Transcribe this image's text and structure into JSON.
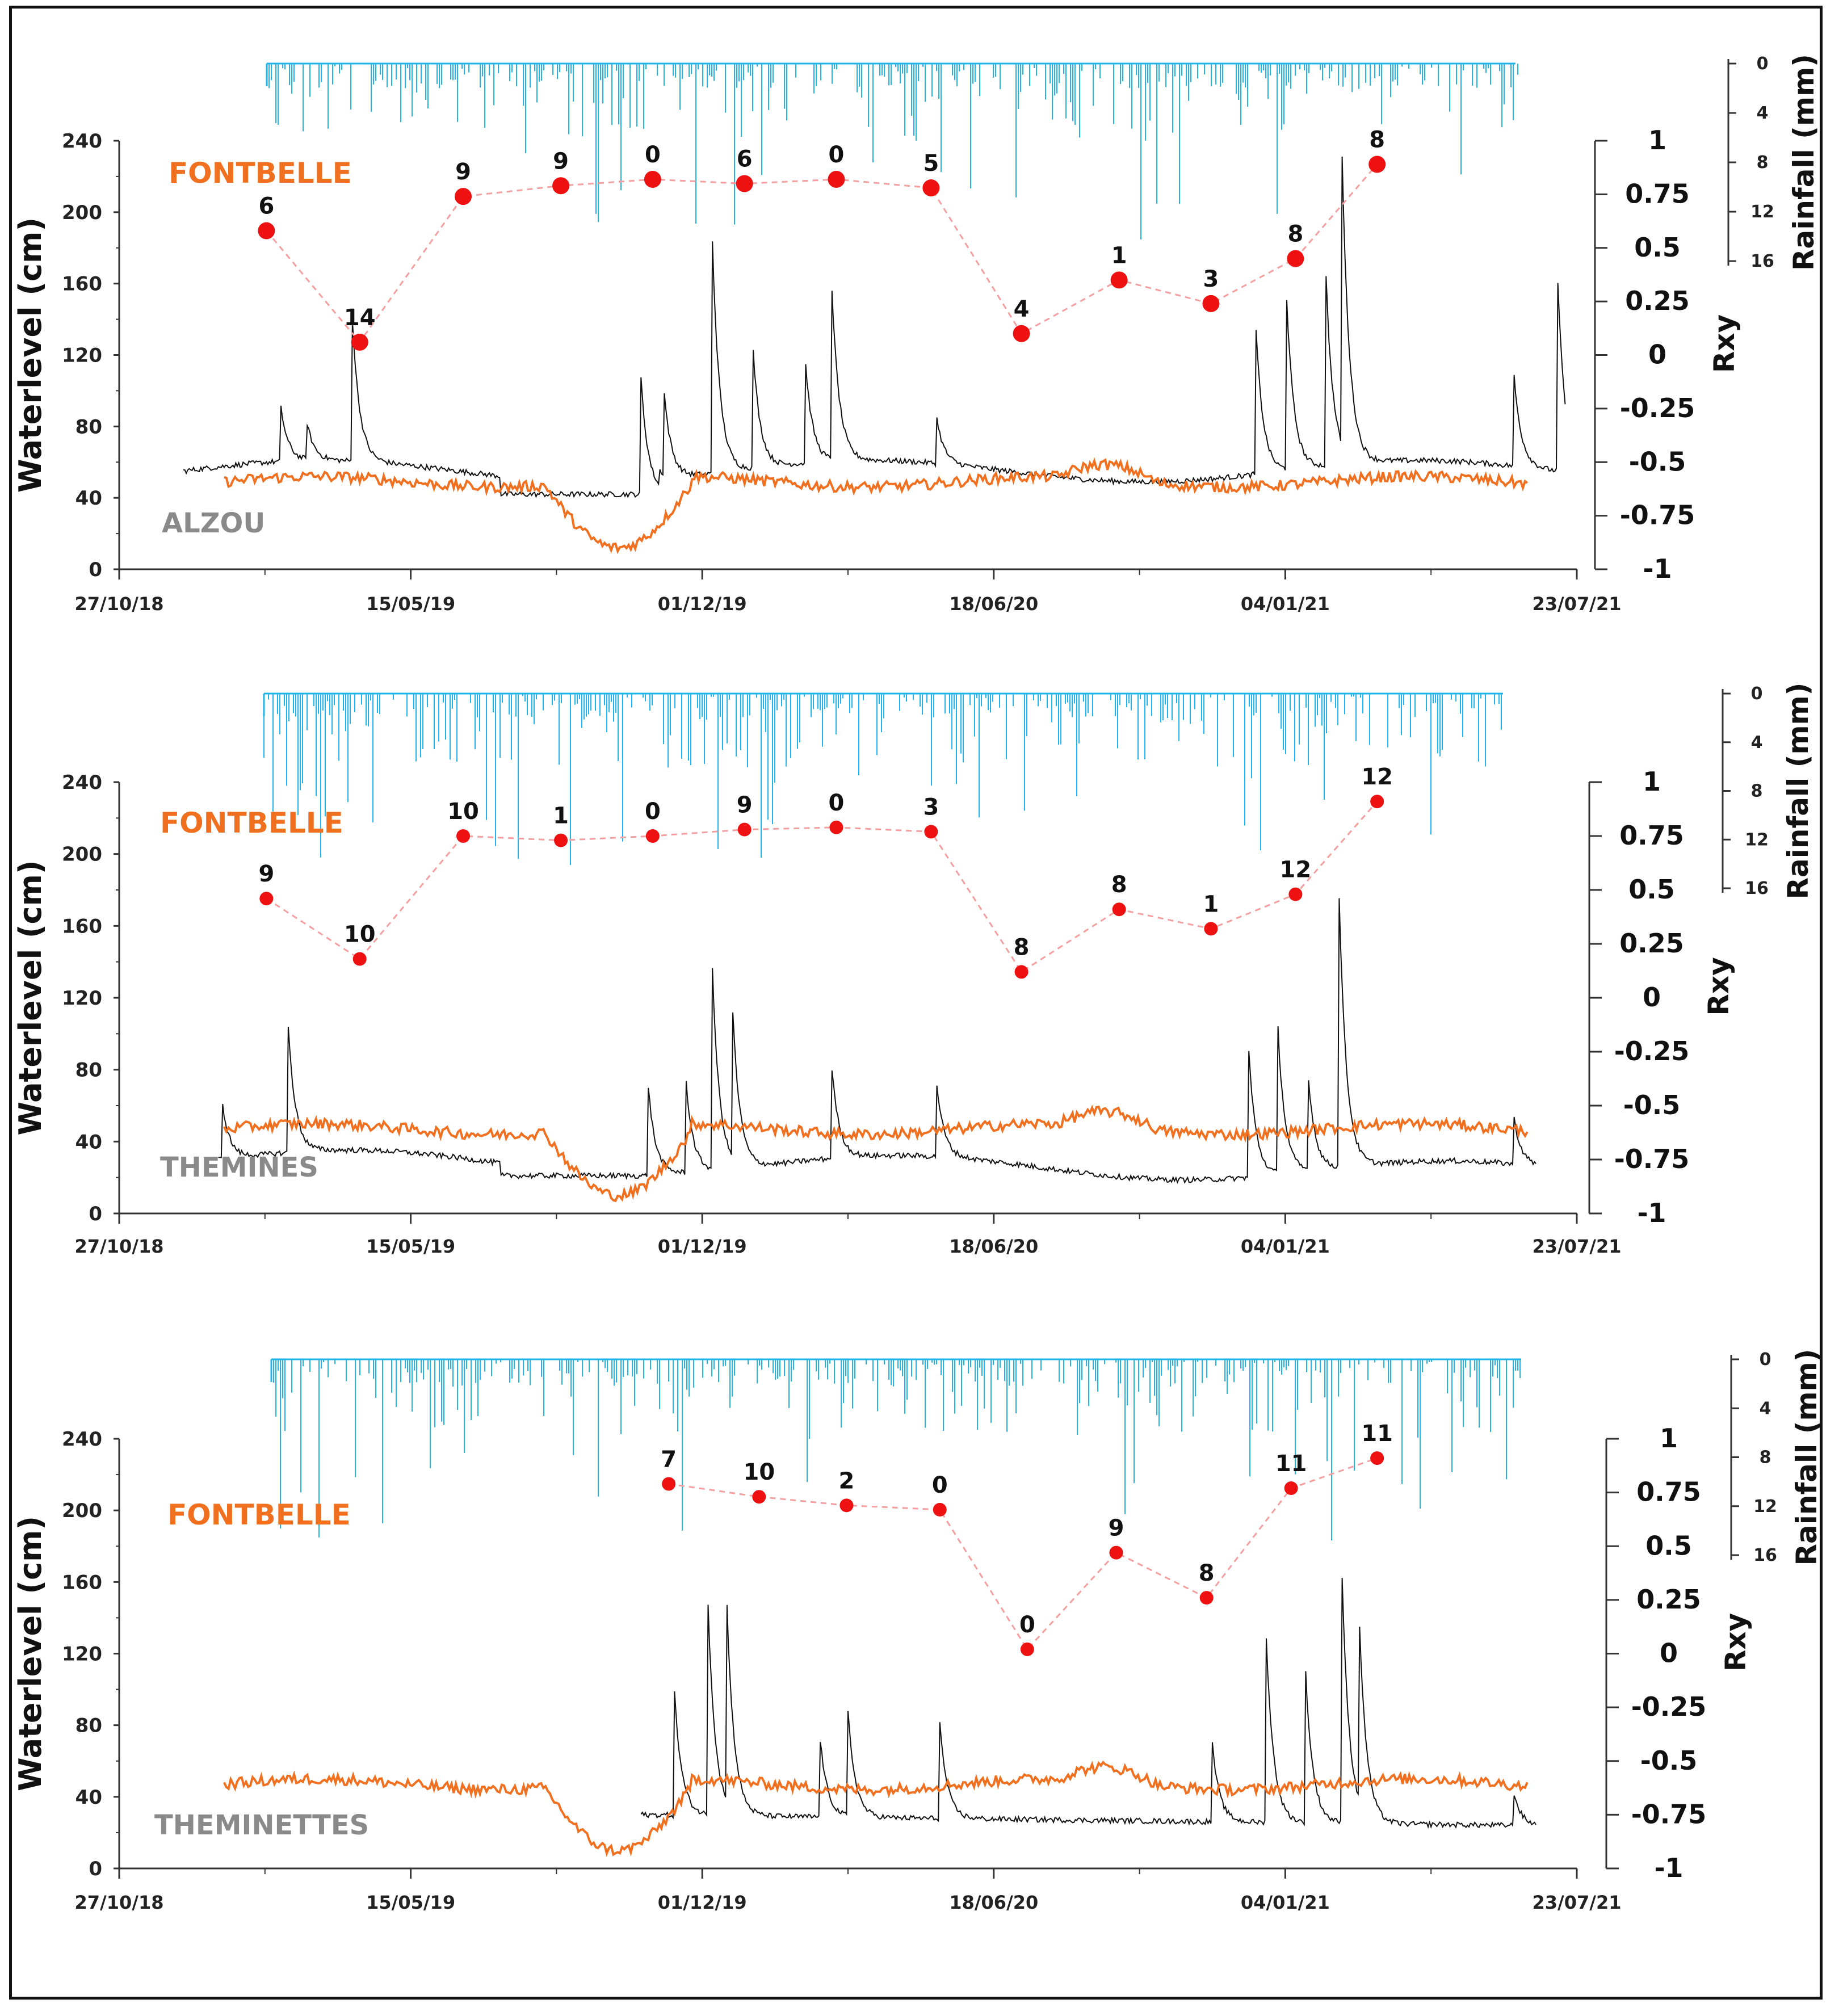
{
  "colors": {
    "rainfall": "#1fb4ea",
    "fontbelle_line": "#f07020",
    "site_line": "#111111",
    "rxy_point": "#ee1111",
    "rxy_dash": "#f4a0a0",
    "fontbelle_label": "#f07020",
    "site_label": "#8a8a8a",
    "axis": "#333333"
  },
  "chart_data": [
    {
      "type": "line",
      "panel": "top",
      "reference_label": "FONTBELLE",
      "site_label": "ALZOU",
      "ylabel_left": "Waterlevel (cm)",
      "ylabel_right": "Rxy",
      "ylabel_rain": "Rainfall (mm)",
      "x_ticks": [
        "27/10/18",
        "15/05/19",
        "01/12/19",
        "18/06/20",
        "04/01/21",
        "23/07/21"
      ],
      "x_tick_dates": [
        "2018-10-27",
        "2019-05-15",
        "2019-12-01",
        "2020-06-18",
        "2021-01-04",
        "2021-07-23"
      ],
      "ylim_left": [
        0,
        240
      ],
      "y_ticks_left": [
        0,
        40,
        80,
        120,
        160,
        200,
        240
      ],
      "ylim_right": [
        -1,
        1
      ],
      "y_ticks_right": [
        "-1",
        "-0.75",
        "-0.5",
        "-0.25",
        "0",
        "0.25",
        "0.5",
        "0.75",
        "1"
      ],
      "rain_ylim": [
        0,
        16
      ],
      "rain_ticks": [
        0,
        4,
        8,
        12,
        16
      ],
      "rxy": {
        "dates": [
          "2019-02-05",
          "2019-04-10",
          "2019-06-20",
          "2019-08-26",
          "2019-10-28",
          "2019-12-30",
          "2020-03-02",
          "2020-05-06",
          "2020-07-07",
          "2020-09-12",
          "2020-11-14",
          "2021-01-11",
          "2021-03-08"
        ],
        "values": [
          0.58,
          0.06,
          0.74,
          0.79,
          0.82,
          0.8,
          0.82,
          0.78,
          0.1,
          0.35,
          0.24,
          0.45,
          0.89
        ],
        "labels": [
          "6",
          "14",
          "9",
          "9",
          "0",
          "6",
          "0",
          "5",
          "4",
          "1",
          "3",
          "8",
          "8"
        ]
      }
    },
    {
      "type": "line",
      "panel": "middle",
      "reference_label": "FONTBELLE",
      "site_label": "THEMINES",
      "ylabel_left": "Waterlevel (cm)",
      "ylabel_right": "Rxy",
      "ylabel_rain": "Rainfall (mm)",
      "x_ticks": [
        "27/10/18",
        "15/05/19",
        "01/12/19",
        "18/06/20",
        "04/01/21",
        "23/07/21"
      ],
      "x_tick_dates": [
        "2018-10-27",
        "2019-05-15",
        "2019-12-01",
        "2020-06-18",
        "2021-01-04",
        "2021-07-23"
      ],
      "ylim_left": [
        0,
        240
      ],
      "y_ticks_left": [
        0,
        40,
        80,
        120,
        160,
        200,
        240
      ],
      "ylim_right": [
        -1,
        1
      ],
      "y_ticks_right": [
        "-1",
        "-0.75",
        "-0.5",
        "-0.25",
        "0",
        "0.25",
        "0.5",
        "0.75",
        "1"
      ],
      "rain_ylim": [
        0,
        16
      ],
      "rain_ticks": [
        0,
        4,
        8,
        12,
        16
      ],
      "rxy": {
        "dates": [
          "2019-02-05",
          "2019-04-10",
          "2019-06-20",
          "2019-08-26",
          "2019-10-28",
          "2019-12-30",
          "2020-03-02",
          "2020-05-06",
          "2020-07-07",
          "2020-09-12",
          "2020-11-14",
          "2021-01-11",
          "2021-03-08"
        ],
        "values": [
          0.46,
          0.18,
          0.75,
          0.73,
          0.75,
          0.78,
          0.79,
          0.77,
          0.12,
          0.41,
          0.32,
          0.48,
          0.91
        ],
        "labels": [
          "9",
          "10",
          "10",
          "1",
          "0",
          "9",
          "0",
          "3",
          "8",
          "8",
          "1",
          "12",
          "12"
        ]
      }
    },
    {
      "type": "line",
      "panel": "bottom",
      "reference_label": "FONTBELLE",
      "site_label": "THEMINETTES",
      "ylabel_left": "Waterlevel (cm)",
      "ylabel_right": "Rxy",
      "ylabel_rain": "Rainfall (mm)",
      "x_ticks": [
        "27/10/18",
        "15/05/19",
        "01/12/19",
        "18/06/20",
        "04/01/21",
        "23/07/21"
      ],
      "x_tick_dates": [
        "2018-10-27",
        "2019-05-15",
        "2019-12-01",
        "2020-06-18",
        "2021-01-04",
        "2021-07-23"
      ],
      "ylim_left": [
        0,
        240
      ],
      "y_ticks_left": [
        0,
        40,
        80,
        120,
        160,
        200,
        240
      ],
      "ylim_right": [
        -1,
        1
      ],
      "y_ticks_right": [
        "-1",
        "-0.75",
        "-0.5",
        "-0.25",
        "0",
        "0.25",
        "0.5",
        "0.75",
        "1"
      ],
      "rain_ylim": [
        0,
        16
      ],
      "rain_ticks": [
        0,
        4,
        8,
        12,
        16
      ],
      "rxy": {
        "dates": [
          "2019-11-08",
          "2020-01-09",
          "2020-03-09",
          "2020-05-12",
          "2020-07-11",
          "2020-09-10",
          "2020-11-11",
          "2021-01-08",
          "2021-03-08"
        ],
        "values": [
          0.79,
          0.73,
          0.69,
          0.67,
          0.02,
          0.47,
          0.26,
          0.77,
          0.91
        ],
        "labels": [
          "7",
          "10",
          "2",
          "0",
          "0",
          "9",
          "8",
          "11",
          "11"
        ]
      }
    }
  ]
}
